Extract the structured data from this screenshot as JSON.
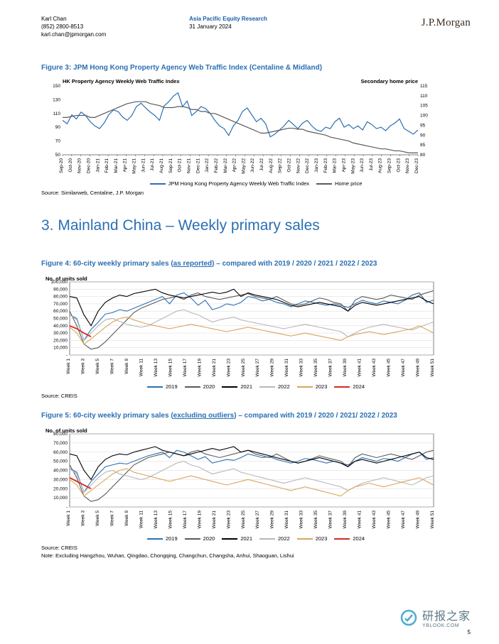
{
  "header": {
    "analyst": "Karl Chan",
    "phone": "(852) 2800-8513",
    "email": "karl.chan@jpmorgan.com",
    "group": "Asia Pacific Equity Research",
    "date": "31 January 2024",
    "brand": "J.P.Morgan"
  },
  "fig3": {
    "title": "Figure 3: JPM Hong Kong Property Agency Web Traffic Index (Centaline & Midland)",
    "y_left_label": "HK Property Agency Weekly Web Traffic Index",
    "y_right_label": "Secondary home price",
    "y_left": {
      "min": 50,
      "max": 150,
      "step": 20,
      "ticks": [
        50,
        70,
        90,
        110,
        130,
        150
      ]
    },
    "y_right": {
      "min": 80,
      "max": 115,
      "step": 5,
      "ticks": [
        80,
        85,
        90,
        95,
        100,
        105,
        110,
        115
      ]
    },
    "x_labels": [
      "Sep-20",
      "Oct-20",
      "Nov-20",
      "Dec-20",
      "Jan-21",
      "Feb-21",
      "Mar-21",
      "Apr-21",
      "May-21",
      "Jun-21",
      "Jul-21",
      "Aug-21",
      "Sep-21",
      "Oct-21",
      "Nov-21",
      "Dec-21",
      "Jan-22",
      "Feb-22",
      "Mar-22",
      "Apr-22",
      "May-22",
      "Jun-22",
      "Jul-22",
      "Aug-22",
      "Sep-22",
      "Oct-22",
      "Nov-22",
      "Dec-22",
      "Jan-23",
      "Feb-23",
      "Mar-23",
      "Apr-23",
      "May-23",
      "Jun-23",
      "Jul-23",
      "Aug-23",
      "Sep-23",
      "Oct-23",
      "Nov-23",
      "Dec-23"
    ],
    "series": {
      "traffic": {
        "color": "#2b6fb3",
        "legend": "JPM Hong Kong Property Agency Weekly Web Traffic Index",
        "values": [
          100,
          95,
          108,
          102,
          112,
          107,
          98,
          92,
          88,
          96,
          108,
          115,
          113,
          105,
          100,
          107,
          120,
          125,
          118,
          112,
          107,
          100,
          121,
          127,
          135,
          140,
          120,
          128,
          107,
          113,
          120,
          117,
          110,
          100,
          92,
          88,
          78,
          92,
          100,
          113,
          118,
          108,
          98,
          103,
          95,
          76,
          80,
          86,
          92,
          100,
          94,
          88,
          96,
          100,
          92,
          86,
          84,
          90,
          88,
          98,
          103,
          90,
          94,
          88,
          92,
          86,
          98,
          94,
          88,
          90,
          85,
          92,
          96,
          102,
          88,
          84,
          80,
          86
        ]
      },
      "price": {
        "color": "#5a5a5a",
        "legend": "Home price",
        "right": true,
        "values": [
          99,
          99,
          99.5,
          100,
          100,
          100,
          99,
          99,
          100,
          101,
          102,
          103,
          104,
          105,
          106,
          106.5,
          107,
          107,
          107,
          106,
          105.5,
          105,
          104,
          104,
          104,
          104.5,
          104.5,
          104,
          103,
          103,
          102,
          102,
          101,
          101,
          100,
          99,
          98,
          97,
          96,
          95,
          94,
          93,
          92,
          91,
          91,
          91.5,
          92,
          92.5,
          93,
          93.5,
          93.5,
          93,
          93,
          92,
          91.5,
          91,
          90.5,
          90,
          89,
          88.5,
          88,
          87.5,
          87,
          86,
          85.5,
          85,
          84.5,
          84,
          83.5,
          83,
          83,
          82.5,
          82,
          82,
          81.5,
          81,
          81,
          81
        ]
      }
    },
    "source": "Source: Similarweb, Centaline, J.P. Morgan"
  },
  "section_title": "3. Mainland China – Weekly primary sales",
  "fig4": {
    "title_pre": "Figure 4: 60-city weekly primary sales (",
    "title_ul": "as reported",
    "title_post": ") – compared with 2019 / 2020 / 2021 / 2022 / 2023",
    "y_label": "No. of units sold",
    "y": {
      "min": 0,
      "max": 100000,
      "ticks": [
        0,
        10000,
        20000,
        30000,
        40000,
        50000,
        60000,
        70000,
        80000,
        90000,
        100000
      ]
    },
    "x_labels": [
      "Week 1",
      "Week 3",
      "Week 5",
      "Week 7",
      "Week 9",
      "Week 11",
      "Week 13",
      "Week 15",
      "Week 17",
      "Week 19",
      "Week 21",
      "Week 23",
      "Week 25",
      "Week 27",
      "Week 29",
      "Week 31",
      "Week 33",
      "Week 35",
      "Week 37",
      "Week 39",
      "Week 41",
      "Week 43",
      "Week 45",
      "Week 47",
      "Week 49",
      "Week 51"
    ],
    "series": {
      "y2019": {
        "color": "#2b6fb3",
        "legend": "2019",
        "values": [
          55000,
          50000,
          20000,
          35000,
          45000,
          56000,
          58000,
          62000,
          60000,
          64000,
          68000,
          72000,
          76000,
          80000,
          70000,
          82000,
          85000,
          78000,
          68000,
          75000,
          62000,
          65000,
          70000,
          68000,
          72000,
          80000,
          78000,
          74000,
          76000,
          72000,
          70000,
          66000,
          70000,
          74000,
          72000,
          70000,
          68000,
          70000,
          68000,
          65000,
          70000,
          75000,
          72000,
          70000,
          74000,
          72000,
          70000,
          75000,
          82000,
          85000,
          72000,
          75000
        ]
      },
      "y2020": {
        "color": "#5a5a5a",
        "legend": "2020",
        "values": [
          60000,
          40000,
          15000,
          8000,
          10000,
          18000,
          28000,
          38000,
          48000,
          58000,
          64000,
          68000,
          72000,
          76000,
          78000,
          80000,
          76000,
          82000,
          85000,
          80000,
          78000,
          76000,
          78000,
          80000,
          82000,
          84000,
          80000,
          78000,
          76000,
          80000,
          75000,
          70000,
          68000,
          70000,
          74000,
          78000,
          76000,
          72000,
          70000,
          60000,
          75000,
          80000,
          78000,
          76000,
          78000,
          82000,
          80000,
          78000,
          76000,
          82000,
          85000,
          88000
        ]
      },
      "y2021": {
        "color": "#000000",
        "legend": "2021",
        "values": [
          80000,
          78000,
          55000,
          40000,
          60000,
          72000,
          78000,
          82000,
          80000,
          84000,
          86000,
          88000,
          90000,
          85000,
          82000,
          80000,
          78000,
          80000,
          82000,
          84000,
          86000,
          84000,
          86000,
          90000,
          80000,
          85000,
          82000,
          80000,
          78000,
          76000,
          72000,
          68000,
          66000,
          68000,
          70000,
          72000,
          70000,
          68000,
          66000,
          60000,
          68000,
          72000,
          70000,
          68000,
          70000,
          72000,
          74000,
          76000,
          78000,
          80000,
          74000,
          70000
        ]
      },
      "y2022": {
        "color": "#b8b8b8",
        "legend": "2022",
        "values": [
          55000,
          48000,
          20000,
          30000,
          40000,
          48000,
          50000,
          46000,
          42000,
          40000,
          38000,
          40000,
          45000,
          50000,
          55000,
          60000,
          62000,
          58000,
          55000,
          50000,
          45000,
          48000,
          50000,
          52000,
          48000,
          46000,
          44000,
          42000,
          40000,
          38000,
          36000,
          38000,
          40000,
          42000,
          40000,
          38000,
          36000,
          34000,
          32000,
          25000,
          30000,
          35000,
          38000,
          40000,
          42000,
          40000,
          38000,
          36000,
          34000,
          38000,
          42000,
          45000
        ]
      },
      "y2023": {
        "color": "#d9a55a",
        "legend": "2023",
        "values": [
          38000,
          30000,
          15000,
          22000,
          30000,
          38000,
          45000,
          50000,
          52000,
          48000,
          45000,
          42000,
          40000,
          38000,
          36000,
          38000,
          40000,
          42000,
          40000,
          38000,
          36000,
          34000,
          32000,
          34000,
          36000,
          38000,
          36000,
          34000,
          32000,
          30000,
          28000,
          26000,
          28000,
          30000,
          28000,
          26000,
          24000,
          22000,
          20000,
          25000,
          28000,
          30000,
          32000,
          30000,
          28000,
          30000,
          32000,
          34000,
          36000,
          40000,
          35000,
          30000
        ]
      },
      "y2024": {
        "color": "#d52b1e",
        "legend": "2024",
        "values": [
          40000,
          36000,
          30000,
          25000
        ]
      }
    },
    "source": "Source: CREIS"
  },
  "fig5": {
    "title_pre": "Figure 5: 60-city weekly primary sales (",
    "title_ul": "excluding outliers",
    "title_post": ") – compared with 2019 / 2020 / 2021/ 2022 / 2023",
    "y_label": "No. of units sold",
    "y": {
      "min": 0,
      "max": 80000,
      "ticks": [
        0,
        10000,
        20000,
        30000,
        40000,
        50000,
        60000,
        70000,
        80000
      ]
    },
    "x_labels": [
      "Week 1",
      "Week 3",
      "Week 5",
      "Week 7",
      "Week 9",
      "Week 11",
      "Week 13",
      "Week 15",
      "Week 17",
      "Week 19",
      "Week 21",
      "Week 23",
      "Week 25",
      "Week 27",
      "Week 29",
      "Week 31",
      "Week 33",
      "Week 35",
      "Week 37",
      "Week 39",
      "Week 41",
      "Week 43",
      "Week 45",
      "Week 47",
      "Week 49",
      "Week 51"
    ],
    "series": {
      "y2019": {
        "color": "#2b6fb3",
        "legend": "2019",
        "values": [
          42000,
          38000,
          16000,
          28000,
          36000,
          44000,
          46000,
          48000,
          47000,
          50000,
          53000,
          56000,
          58000,
          60000,
          54000,
          62000,
          60000,
          56000,
          52000,
          55000,
          48000,
          50000,
          52000,
          51000,
          54000,
          58000,
          56000,
          54000,
          55000,
          52000,
          50000,
          48000,
          50000,
          53000,
          52000,
          50000,
          48000,
          50000,
          48000,
          46000,
          50000,
          54000,
          52000,
          50000,
          53000,
          52000,
          50000,
          54000,
          58000,
          60000,
          52000,
          54000
        ]
      },
      "y2020": {
        "color": "#5a5a5a",
        "legend": "2020",
        "values": [
          46000,
          32000,
          12000,
          6000,
          8000,
          14000,
          22000,
          30000,
          38000,
          46000,
          50000,
          54000,
          56000,
          58000,
          60000,
          58000,
          56000,
          60000,
          62000,
          58000,
          56000,
          54000,
          56000,
          58000,
          60000,
          62000,
          58000,
          56000,
          54000,
          58000,
          54000,
          50000,
          48000,
          50000,
          53000,
          56000,
          54000,
          52000,
          50000,
          44000,
          54000,
          58000,
          56000,
          54000,
          56000,
          58000,
          56000,
          54000,
          52000,
          56000,
          60000,
          62000
        ]
      },
      "y2021": {
        "color": "#000000",
        "legend": "2021",
        "values": [
          58000,
          56000,
          40000,
          30000,
          44000,
          52000,
          56000,
          58000,
          57000,
          60000,
          62000,
          64000,
          66000,
          62000,
          60000,
          58000,
          56000,
          58000,
          60000,
          62000,
          64000,
          62000,
          64000,
          66000,
          60000,
          62000,
          60000,
          58000,
          56000,
          54000,
          52000,
          50000,
          48000,
          50000,
          52000,
          54000,
          52000,
          50000,
          48000,
          44000,
          50000,
          52000,
          50000,
          48000,
          50000,
          52000,
          54000,
          56000,
          58000,
          60000,
          54000,
          52000
        ]
      },
      "y2022": {
        "color": "#b8b8b8",
        "legend": "2022",
        "values": [
          42000,
          36000,
          16000,
          24000,
          32000,
          38000,
          40000,
          36000,
          34000,
          32000,
          30000,
          32000,
          36000,
          40000,
          44000,
          48000,
          50000,
          46000,
          44000,
          40000,
          36000,
          38000,
          40000,
          42000,
          38000,
          36000,
          34000,
          32000,
          30000,
          28000,
          26000,
          28000,
          30000,
          32000,
          30000,
          28000,
          26000,
          24000,
          22000,
          18000,
          22000,
          26000,
          28000,
          30000,
          32000,
          30000,
          28000,
          26000,
          24000,
          28000,
          32000,
          34000
        ]
      },
      "y2023": {
        "color": "#d9a55a",
        "legend": "2023",
        "values": [
          30000,
          24000,
          12000,
          18000,
          24000,
          30000,
          36000,
          40000,
          42000,
          38000,
          36000,
          34000,
          32000,
          30000,
          28000,
          30000,
          32000,
          34000,
          32000,
          30000,
          28000,
          26000,
          24000,
          26000,
          28000,
          30000,
          28000,
          26000,
          24000,
          22000,
          20000,
          18000,
          20000,
          22000,
          20000,
          18000,
          16000,
          14000,
          12000,
          18000,
          22000,
          24000,
          26000,
          24000,
          22000,
          24000,
          26000,
          28000,
          30000,
          32000,
          28000,
          24000
        ]
      },
      "y2024": {
        "color": "#d52b1e",
        "legend": "2024",
        "values": [
          32000,
          28000,
          24000,
          20000
        ]
      }
    },
    "source": "Source: CREIS",
    "note": "Note: Excluding Hangzhou, Wuhan, Qingdao, Chongqing, Changchun, Changsha, Anhui, Shaoguan, Lishui"
  },
  "page_number": "5",
  "watermark": {
    "main": "研报之家",
    "sub": "YBLOOK.COM"
  }
}
